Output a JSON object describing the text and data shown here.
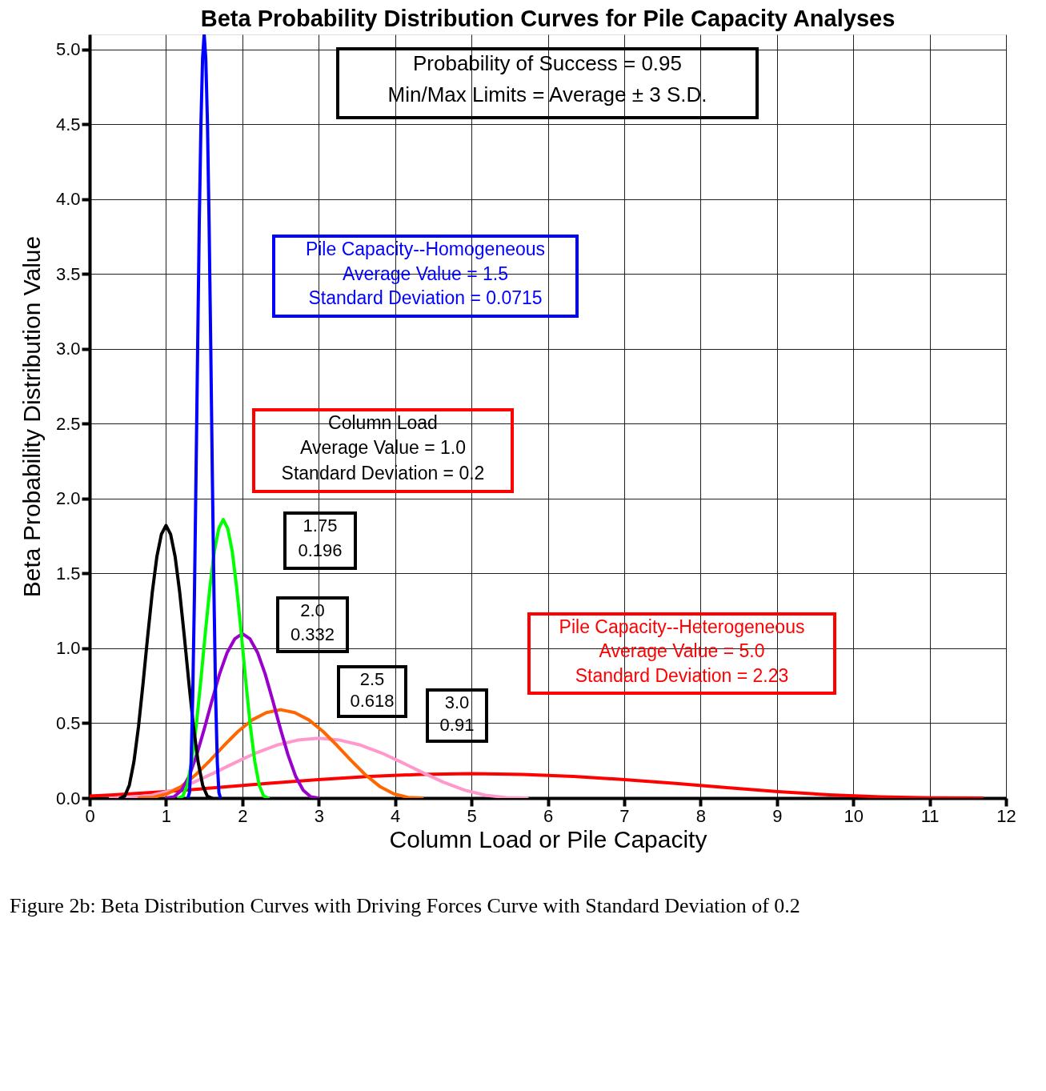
{
  "chart_data": {
    "type": "line",
    "title": "Beta Probability Distribution Curves for Pile Capacity Analyses",
    "xlabel": "Column Load or Pile Capacity",
    "ylabel": "Beta Probability Distribution Value",
    "xlim": [
      0,
      12
    ],
    "xticks": [
      0,
      1,
      2,
      3,
      4,
      5,
      6,
      7,
      8,
      9,
      10,
      11,
      12
    ],
    "ylim": [
      0,
      5.1
    ],
    "yticks": [
      {
        "value": 0,
        "label": "0.0"
      },
      {
        "value": 0.5,
        "label": "0.5"
      },
      {
        "value": 1,
        "label": "1.0"
      },
      {
        "value": 1.5,
        "label": "1.5"
      },
      {
        "value": 2,
        "label": "2.0"
      },
      {
        "value": 2.5,
        "label": "2.5"
      },
      {
        "value": 3,
        "label": "3.0"
      },
      {
        "value": 3.5,
        "label": "3.5"
      },
      {
        "value": 4,
        "label": "4.0"
      },
      {
        "value": 4.5,
        "label": "4.5"
      },
      {
        "value": 5,
        "label": "5.0"
      }
    ],
    "grid": true,
    "legend": false,
    "marker": "none",
    "line_style": "solid",
    "series": [
      {
        "color": "#ff0000",
        "x": [
          0,
          0.317,
          0.986,
          1.655,
          2.324,
          2.993,
          3.662,
          4.331,
          5,
          5.669,
          6.338,
          7.007,
          7.676,
          8.345,
          9.014,
          9.683,
          10.352,
          11.021,
          11.69
        ],
        "values": [
          0.014,
          0.022,
          0.043,
          0.069,
          0.097,
          0.123,
          0.144,
          0.158,
          0.163,
          0.158,
          0.144,
          0.123,
          0.097,
          0.069,
          0.043,
          0.022,
          0.008,
          0.001,
          0
        ]
      },
      {
        "color": "#ff99cc",
        "x": [
          0.27,
          0.543,
          0.816,
          1.089,
          1.362,
          1.635,
          1.908,
          2.181,
          2.454,
          2.727,
          3.0,
          3.273,
          3.546,
          3.819,
          4.092,
          4.365,
          4.638,
          4.911,
          5.184,
          5.457,
          5.73
        ],
        "values": [
          0,
          0.003,
          0.019,
          0.053,
          0.105,
          0.169,
          0.237,
          0.302,
          0.354,
          0.387,
          0.4,
          0.387,
          0.354,
          0.302,
          0.237,
          0.169,
          0.105,
          0.053,
          0.019,
          0.003,
          0
        ]
      },
      {
        "color": "#ff6600",
        "x": [
          0.646,
          0.831,
          1.017,
          1.202,
          1.388,
          1.573,
          1.758,
          1.944,
          2.129,
          2.315,
          2.5,
          2.685,
          2.871,
          3.056,
          3.242,
          3.427,
          3.612,
          3.798,
          3.983,
          4.169,
          4.354
        ],
        "values": [
          0,
          0.004,
          0.028,
          0.078,
          0.155,
          0.249,
          0.35,
          0.445,
          0.522,
          0.571,
          0.59,
          0.571,
          0.522,
          0.445,
          0.35,
          0.249,
          0.155,
          0.078,
          0.028,
          0.004,
          0
        ]
      },
      {
        "color": "#9900cc",
        "x": [
          1.004,
          1.104,
          1.203,
          1.303,
          1.402,
          1.502,
          1.602,
          1.701,
          1.801,
          1.9,
          2.0,
          2.1,
          2.199,
          2.299,
          2.398,
          2.498,
          2.598,
          2.697,
          2.797,
          2.896,
          2.996
        ],
        "values": [
          0,
          0.008,
          0.052,
          0.146,
          0.288,
          0.463,
          0.651,
          0.828,
          0.972,
          1.063,
          1.098,
          1.063,
          0.972,
          0.828,
          0.651,
          0.463,
          0.288,
          0.146,
          0.052,
          0.008,
          0
        ]
      },
      {
        "color": "#00ff00",
        "x": [
          1.162,
          1.221,
          1.28,
          1.338,
          1.397,
          1.456,
          1.515,
          1.574,
          1.632,
          1.691,
          1.75,
          1.809,
          1.868,
          1.926,
          1.985,
          2.044,
          2.103,
          2.162,
          2.22,
          2.279,
          2.338
        ],
        "values": [
          0,
          0.013,
          0.087,
          0.247,
          0.487,
          0.785,
          1.103,
          1.402,
          1.646,
          1.8,
          1.86,
          1.8,
          1.646,
          1.402,
          1.103,
          0.785,
          0.487,
          0.247,
          0.087,
          0.013,
          0
        ]
      },
      {
        "color": "#000000",
        "x": [
          0.4,
          0.46,
          0.52,
          0.58,
          0.64,
          0.7,
          0.76,
          0.82,
          0.88,
          0.94,
          1.0,
          1.06,
          1.12,
          1.18,
          1.24,
          1.3,
          1.36,
          1.42,
          1.48,
          1.54,
          1.6
        ],
        "values": [
          0,
          0.013,
          0.086,
          0.242,
          0.477,
          0.768,
          1.079,
          1.372,
          1.611,
          1.762,
          1.82,
          1.762,
          1.611,
          1.372,
          1.079,
          0.768,
          0.477,
          0.242,
          0.086,
          0.013,
          0
        ]
      },
      {
        "color": "#0000ff",
        "x": [
          1.286,
          1.307,
          1.329,
          1.35,
          1.372,
          1.393,
          1.415,
          1.436,
          1.458,
          1.479,
          1.5,
          1.521,
          1.543,
          1.564,
          1.586,
          1.607,
          1.629,
          1.65,
          1.672,
          1.693,
          1.714
        ],
        "values": [
          0,
          0.036,
          0.24,
          0.68,
          1.34,
          2.15,
          3.02,
          3.85,
          4.51,
          4.94,
          5.1,
          4.94,
          4.51,
          3.85,
          3.02,
          2.15,
          1.34,
          0.68,
          0.24,
          0.036,
          0
        ]
      }
    ],
    "annotations": [
      "Probability of Success = 0.95\nMin/Max Limits = Average ± 3 S.D.",
      "Pile Capacity--Homogeneous\nAverage Value = 1.5\nStandard Deviation = 0.0715",
      "Column Load\nAverage Value = 1.0\nStandard Deviation = 0.2",
      "1.75\n0.196",
      "2.0\n0.332",
      "2.5\n0.618",
      "3.0\n0.91",
      "Pile Capacity--Heterogeneous\nAverage Value = 5.0\nStandard Deviation = 2.23",
      "Figure 2b: Beta Distribution Curves with Driving Forces Curve with Standard Deviation of 0.2"
    ]
  }
}
